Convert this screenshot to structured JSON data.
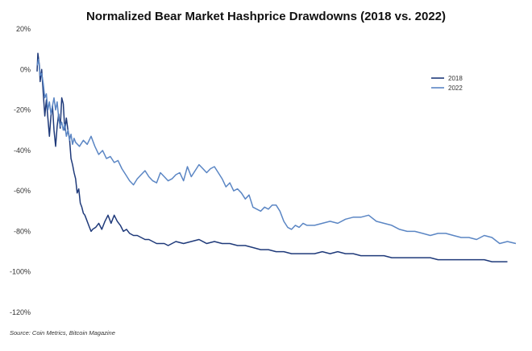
{
  "chart_data": {
    "type": "line",
    "title": "Normalized Bear Market Hashprice Drawdowns (2018 vs. 2022)",
    "xlabel": "",
    "ylabel": "",
    "ylim": [
      -120,
      20
    ],
    "yticks": [
      20,
      0,
      -20,
      -40,
      -60,
      -80,
      -100,
      -120
    ],
    "ytick_labels": [
      "20%",
      "0%",
      "-20%",
      "-40%",
      "-60%",
      "-80%",
      "-100%",
      "-120%"
    ],
    "x_unit": "days since cycle peak",
    "xlim": [
      0,
      621
    ],
    "grid": false,
    "legend_position": "top-right",
    "source": "Source: Coin Metrics, Bitcoin Magazine",
    "series": [
      {
        "name": "2018",
        "color": "#1f3a7a",
        "x": [
          0,
          1,
          3,
          4,
          6,
          8,
          10,
          12,
          14,
          16,
          18,
          20,
          22,
          24,
          26,
          28,
          30,
          32,
          34,
          36,
          38,
          40,
          42,
          44,
          46,
          48,
          50,
          52,
          54,
          56,
          58,
          60,
          62,
          64,
          66,
          68,
          70,
          72,
          76,
          80,
          84,
          88,
          92,
          96,
          100,
          104,
          108,
          112,
          116,
          120,
          125,
          130,
          135,
          140,
          145,
          150,
          155,
          160,
          165,
          170,
          175,
          180,
          190,
          200,
          210,
          220,
          230,
          240,
          250,
          260,
          270,
          280,
          290,
          300,
          310,
          320,
          330,
          340,
          350,
          360,
          370,
          380,
          390,
          400,
          410,
          420,
          430,
          440,
          450,
          460,
          470,
          480,
          490,
          500,
          510,
          520,
          530,
          540,
          550,
          560,
          570,
          580,
          590,
          600,
          610
        ],
        "values": [
          -1,
          8,
          2,
          -6,
          0,
          -12,
          -23,
          -15,
          -24,
          -33,
          -23,
          -18,
          -30,
          -38,
          -28,
          -22,
          -29,
          -14,
          -17,
          -30,
          -24,
          -30,
          -34,
          -44,
          -47,
          -51,
          -54,
          -61,
          -59,
          -66,
          -68,
          -71,
          -72,
          -74,
          -76,
          -78,
          -80,
          -79,
          -78,
          -76,
          -79,
          -75,
          -72,
          -76,
          -72,
          -75,
          -77,
          -80,
          -79,
          -81,
          -82,
          -82,
          -83,
          -84,
          -84,
          -85,
          -86,
          -86,
          -86,
          -87,
          -86,
          -85,
          -86,
          -85,
          -84,
          -86,
          -85,
          -86,
          -86,
          -87,
          -87,
          -88,
          -89,
          -89,
          -90,
          -90,
          -91,
          -91,
          -91,
          -91,
          -90,
          -91,
          -90,
          -91,
          -91,
          -92,
          -92,
          -92,
          -92,
          -93,
          -93,
          -93,
          -93,
          -93,
          -93,
          -94,
          -94,
          -94,
          -94,
          -94,
          -94,
          -94,
          -95,
          -95,
          -95
        ]
      },
      {
        "name": "2022",
        "color": "#5b86c4",
        "x": [
          0,
          2,
          4,
          6,
          8,
          10,
          12,
          14,
          16,
          18,
          20,
          22,
          24,
          26,
          28,
          30,
          32,
          34,
          36,
          38,
          40,
          42,
          44,
          46,
          48,
          50,
          55,
          60,
          65,
          70,
          75,
          80,
          85,
          90,
          95,
          100,
          105,
          110,
          115,
          120,
          125,
          130,
          135,
          140,
          145,
          150,
          155,
          160,
          165,
          170,
          175,
          180,
          185,
          190,
          195,
          200,
          205,
          210,
          215,
          220,
          225,
          230,
          235,
          240,
          245,
          250,
          255,
          260,
          265,
          270,
          275,
          280,
          285,
          290,
          295,
          300,
          305,
          310,
          315,
          320,
          325,
          330,
          335,
          340,
          345,
          350,
          360,
          370,
          380,
          390,
          400,
          410,
          420,
          430,
          440,
          450,
          460,
          470,
          480,
          490,
          500,
          510,
          520,
          530,
          540,
          550,
          560,
          570,
          580,
          590,
          600,
          610,
          621
        ],
        "values": [
          2,
          5,
          -3,
          -2,
          -7,
          -14,
          -12,
          -20,
          -16,
          -22,
          -18,
          -14,
          -20,
          -16,
          -24,
          -28,
          -26,
          -30,
          -27,
          -33,
          -30,
          -35,
          -32,
          -37,
          -34,
          -36,
          -38,
          -35,
          -37,
          -33,
          -38,
          -42,
          -40,
          -44,
          -43,
          -46,
          -45,
          -49,
          -52,
          -55,
          -57,
          -54,
          -52,
          -50,
          -53,
          -55,
          -56,
          -51,
          -53,
          -55,
          -54,
          -52,
          -51,
          -55,
          -48,
          -53,
          -50,
          -47,
          -49,
          -51,
          -49,
          -48,
          -51,
          -54,
          -58,
          -56,
          -60,
          -59,
          -61,
          -64,
          -62,
          -68,
          -69,
          -70,
          -68,
          -69,
          -67,
          -67,
          -70,
          -75,
          -78,
          -79,
          -77,
          -78,
          -76,
          -77,
          -77,
          -76,
          -75,
          -76,
          -74,
          -73,
          -73,
          -72,
          -75,
          -76,
          -77,
          -79,
          -80,
          -80,
          -81,
          -82,
          -81,
          -81,
          -82,
          -83,
          -83,
          -84,
          -82,
          -83,
          -86,
          -85,
          -86
        ]
      }
    ]
  }
}
